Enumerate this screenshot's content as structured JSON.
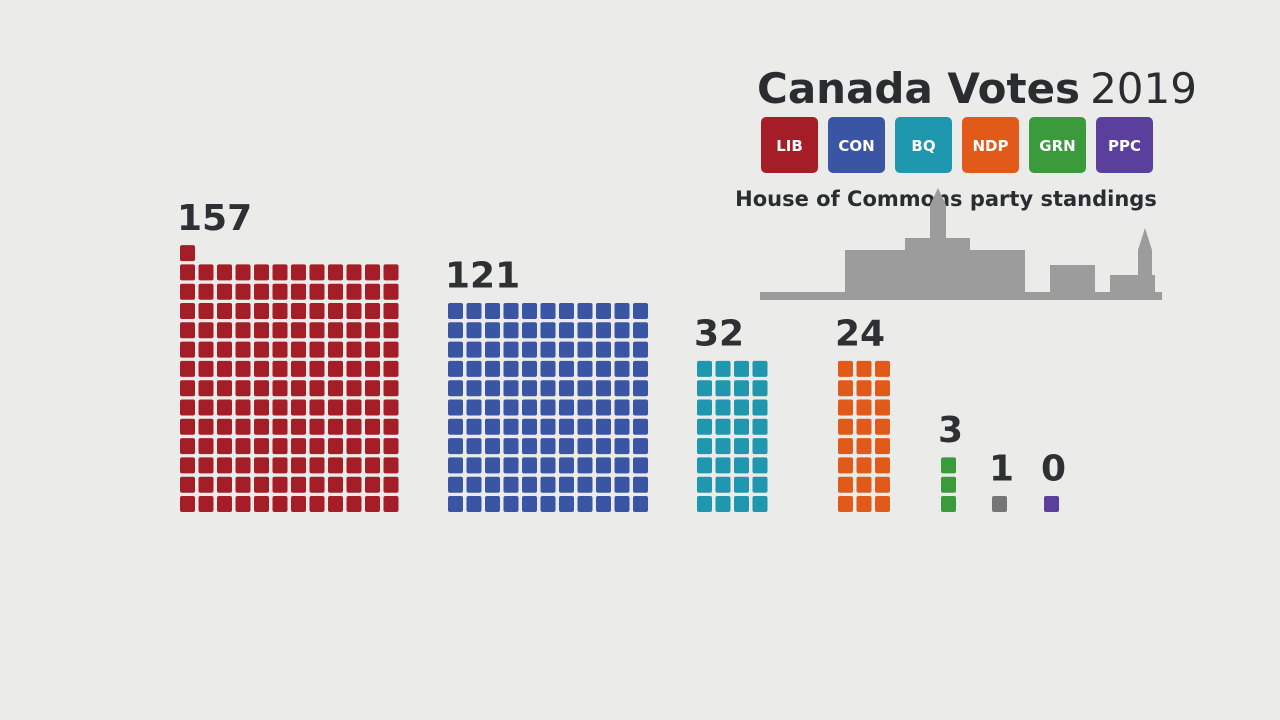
{
  "chart_data": {
    "type": "waffle",
    "title": "Canada Votes",
    "title_year": "2019",
    "subtitle": "House of Commons party standings",
    "categories": [
      "LIB",
      "CON",
      "BQ",
      "NDP",
      "GRN",
      null,
      "PPC"
    ],
    "values": [
      157,
      121,
      32,
      24,
      3,
      1,
      0
    ],
    "colors": [
      "#a51d26",
      "#3a55a4",
      "#1e97af",
      "#e15a19",
      "#3a9a3c",
      "#767676",
      "#5a3f9d"
    ]
  }
}
